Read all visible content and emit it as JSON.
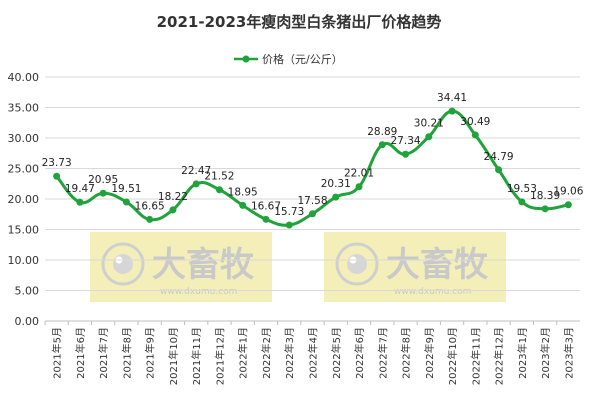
{
  "chart_data": {
    "type": "line",
    "title": "2021-2023年瘦肉型白条猪出厂价格趋势",
    "legend_position": "top",
    "grid": true,
    "ylim": [
      0,
      40
    ],
    "yticks": [
      "0.00",
      "5.00",
      "10.00",
      "15.00",
      "20.00",
      "25.00",
      "30.00",
      "35.00",
      "40.00"
    ],
    "categories": [
      "2021年5月",
      "2021年6月",
      "2021年7月",
      "2021年8月",
      "2021年9月",
      "2021年10月",
      "2021年11月",
      "2021年12月",
      "2022年1月",
      "2022年2月",
      "2022年3月",
      "2022年4月",
      "2022年5月",
      "2022年6月",
      "2022年7月",
      "2022年8月",
      "2022年9月",
      "2022年10月",
      "2022年11月",
      "2022年12月",
      "2023年1月",
      "2023年2月",
      "2023年3月"
    ],
    "series": [
      {
        "name": "价格（元/公斤）",
        "color": "#1fa33a",
        "values": [
          23.73,
          19.47,
          20.95,
          19.51,
          16.65,
          18.22,
          22.47,
          21.52,
          18.95,
          16.67,
          15.73,
          17.58,
          20.31,
          22.01,
          28.89,
          27.34,
          30.21,
          34.41,
          30.49,
          24.79,
          19.53,
          18.39,
          19.06
        ],
        "labels": [
          "23.73",
          "19.47",
          "20.95",
          "19.51",
          "16.65",
          "18.22",
          "22.47",
          "21.52",
          "18.95",
          "16.67",
          "15.73",
          "17.58",
          "20.31",
          "22.01",
          "28.89",
          "27.34",
          "30.21",
          "34.41",
          "30.49",
          "24.79",
          "19.53",
          "18.39",
          "19.06"
        ]
      }
    ]
  },
  "watermark": {
    "text": "大畜牧",
    "url": "www.dxumu.com",
    "bg_color": "#f4efb8",
    "icon": "eye-logo-icon"
  }
}
